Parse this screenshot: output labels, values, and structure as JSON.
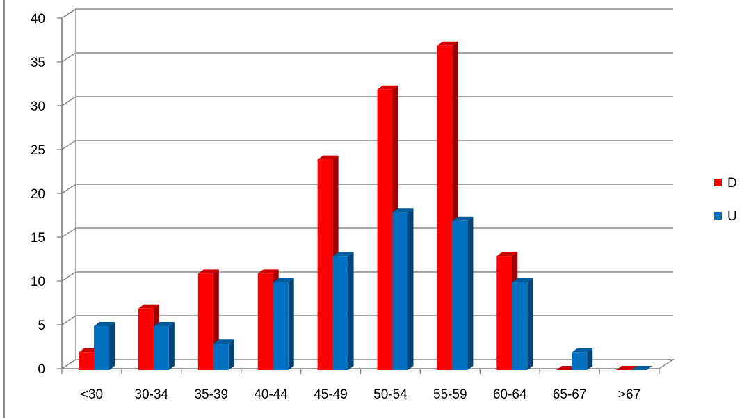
{
  "chart_data": {
    "type": "bar",
    "categories": [
      "<30",
      "30-34",
      "35-39",
      "40-44",
      "45-49",
      "50-54",
      "55-59",
      "60-64",
      "65-67",
      ">67"
    ],
    "series": [
      {
        "name": "D",
        "color": "#ff0000",
        "values": [
          2,
          7,
          11,
          11,
          24,
          32,
          37,
          13,
          0,
          0
        ]
      },
      {
        "name": "U",
        "color": "#0070c0",
        "values": [
          5,
          5,
          3,
          10,
          13,
          18,
          17,
          10,
          2,
          0
        ]
      }
    ],
    "ylim": [
      0,
      40
    ],
    "yticks": [
      0,
      5,
      10,
      15,
      20,
      25,
      30,
      35,
      40
    ],
    "grid": true,
    "legend": "right",
    "style": "3d-clustered-column"
  }
}
